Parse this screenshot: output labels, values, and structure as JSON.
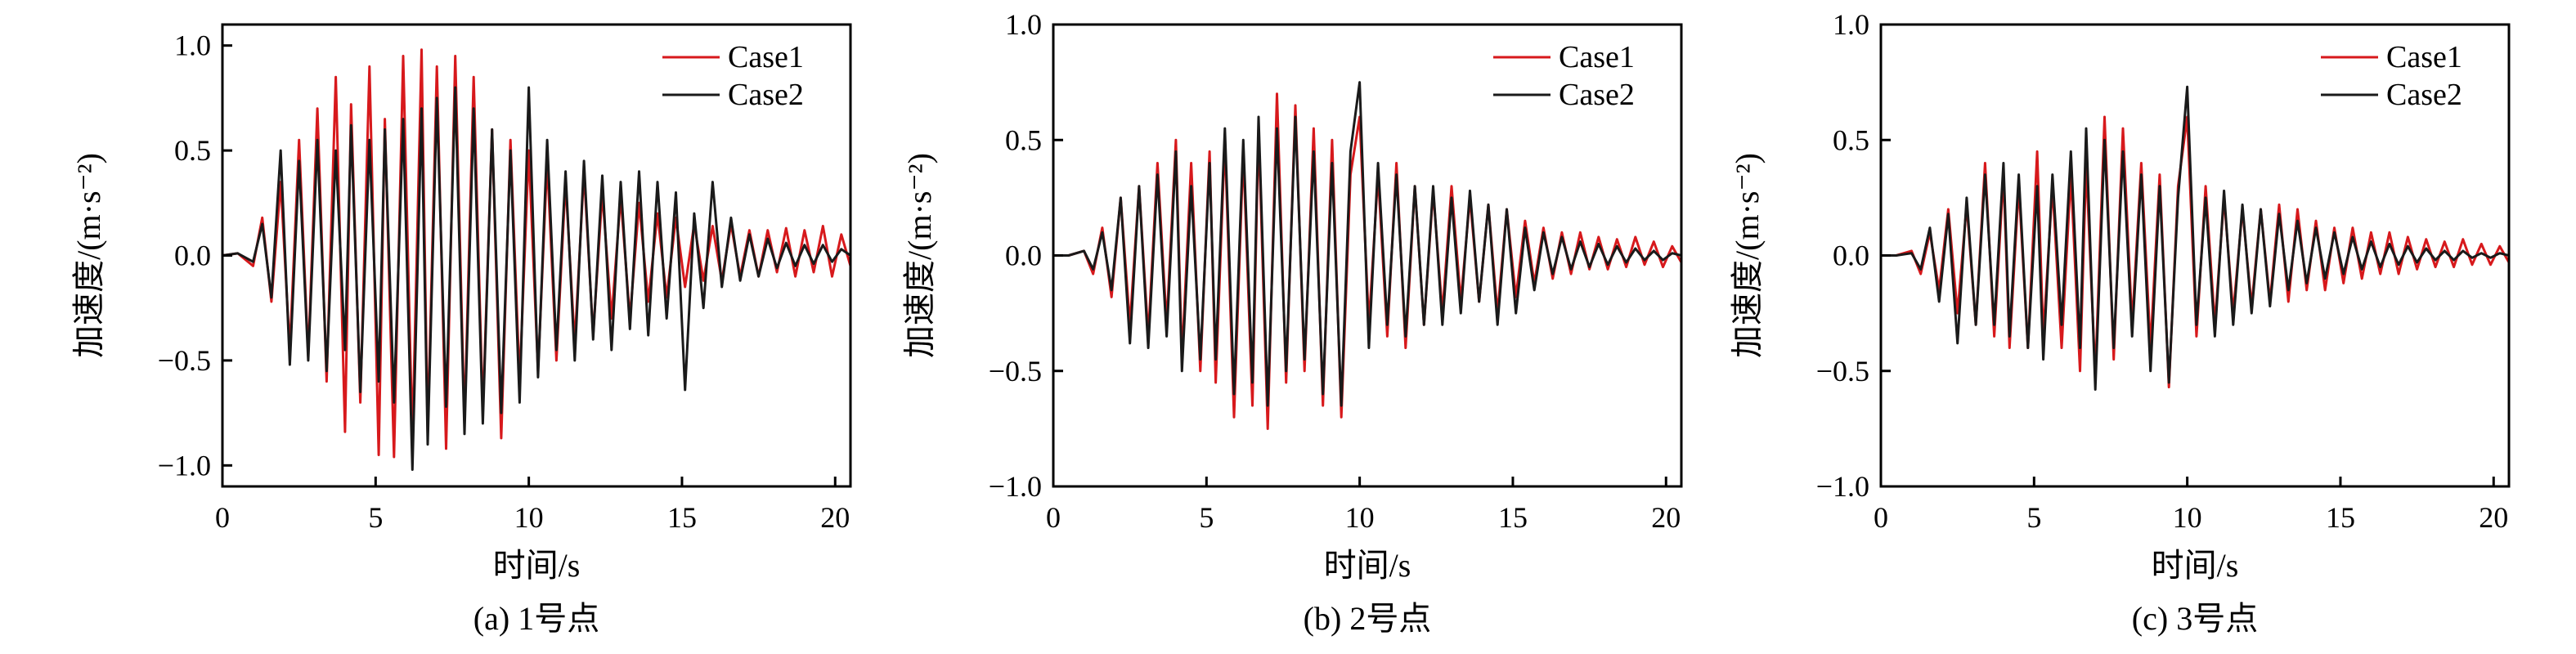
{
  "colors": {
    "case1": "#d7191c",
    "case2": "#1a1a1a",
    "axis": "#000000"
  },
  "chart_data": [
    {
      "type": "line",
      "caption": "(a) 1号点",
      "xlabel": "时间/s",
      "ylabel": "加速度/(m·s⁻²)",
      "xlim": [
        0,
        20.5
      ],
      "ylim": [
        -1.1,
        1.1
      ],
      "xticks": [
        0,
        5,
        10,
        15,
        20
      ],
      "xtick_labels": [
        "0",
        "5",
        "10",
        "15",
        "20"
      ],
      "yticks": [
        -1.0,
        -0.5,
        0.0,
        0.5,
        1.0
      ],
      "ytick_labels": [
        "−1.0",
        "−0.5",
        "0.0",
        "0.5",
        "1.0"
      ],
      "legend_position": "top-right",
      "series": [
        {
          "name": "Case1",
          "color": "#d7191c",
          "x": [
            0.0,
            0.5,
            1.0,
            1.3,
            1.6,
            1.9,
            2.2,
            2.5,
            2.8,
            3.1,
            3.4,
            3.7,
            4.0,
            4.2,
            4.5,
            4.8,
            5.1,
            5.3,
            5.6,
            5.9,
            6.2,
            6.5,
            6.7,
            7.0,
            7.3,
            7.6,
            7.9,
            8.2,
            8.5,
            8.8,
            9.1,
            9.4,
            9.7,
            10.0,
            10.3,
            10.6,
            10.9,
            11.2,
            11.5,
            11.8,
            12.1,
            12.4,
            12.7,
            13.0,
            13.3,
            13.6,
            13.9,
            14.2,
            14.5,
            14.8,
            15.1,
            15.4,
            15.7,
            16.0,
            16.3,
            16.6,
            16.9,
            17.2,
            17.5,
            17.8,
            18.1,
            18.4,
            18.7,
            19.0,
            19.3,
            19.6,
            19.9,
            20.2,
            20.5
          ],
          "y": [
            0.0,
            0.01,
            -0.05,
            0.18,
            -0.22,
            0.35,
            -0.45,
            0.55,
            -0.48,
            0.7,
            -0.6,
            0.85,
            -0.84,
            0.72,
            -0.7,
            0.9,
            -0.95,
            0.65,
            -0.96,
            0.95,
            -0.88,
            0.98,
            -0.85,
            0.9,
            -0.92,
            0.95,
            -0.8,
            0.85,
            -0.75,
            0.6,
            -0.87,
            0.55,
            -0.6,
            0.5,
            -0.55,
            0.45,
            -0.5,
            0.35,
            -0.42,
            0.4,
            -0.38,
            0.3,
            -0.3,
            0.28,
            -0.3,
            0.25,
            -0.22,
            0.2,
            -0.2,
            0.18,
            -0.15,
            0.15,
            -0.12,
            0.14,
            -0.12,
            0.15,
            -0.1,
            0.12,
            -0.1,
            0.12,
            -0.08,
            0.13,
            -0.1,
            0.12,
            -0.08,
            0.14,
            -0.1,
            0.1,
            -0.05
          ]
        },
        {
          "name": "Case2",
          "color": "#1a1a1a",
          "x": [
            0.0,
            0.5,
            1.0,
            1.3,
            1.6,
            1.9,
            2.2,
            2.5,
            2.8,
            3.1,
            3.4,
            3.7,
            4.0,
            4.2,
            4.5,
            4.8,
            5.1,
            5.3,
            5.6,
            5.9,
            6.2,
            6.5,
            6.7,
            7.0,
            7.3,
            7.6,
            7.9,
            8.2,
            8.5,
            8.8,
            9.1,
            9.4,
            9.7,
            10.0,
            10.3,
            10.6,
            10.9,
            11.2,
            11.5,
            11.8,
            12.1,
            12.4,
            12.7,
            13.0,
            13.3,
            13.6,
            13.9,
            14.2,
            14.5,
            14.8,
            15.1,
            15.4,
            15.7,
            16.0,
            16.3,
            16.6,
            16.9,
            17.2,
            17.5,
            17.8,
            18.1,
            18.4,
            18.7,
            19.0,
            19.3,
            19.6,
            19.9,
            20.2,
            20.5
          ],
          "y": [
            0.0,
            0.01,
            -0.03,
            0.15,
            -0.2,
            0.5,
            -0.52,
            0.45,
            -0.5,
            0.55,
            -0.55,
            0.5,
            -0.45,
            0.62,
            -0.65,
            0.55,
            -0.6,
            0.6,
            -0.7,
            0.65,
            -1.02,
            0.7,
            -0.9,
            0.75,
            -0.72,
            0.8,
            -0.85,
            0.7,
            -0.8,
            0.6,
            -0.75,
            0.5,
            -0.7,
            0.8,
            -0.58,
            0.55,
            -0.45,
            0.4,
            -0.5,
            0.45,
            -0.4,
            0.38,
            -0.45,
            0.35,
            -0.35,
            0.4,
            -0.38,
            0.35,
            -0.3,
            0.3,
            -0.64,
            0.2,
            -0.25,
            0.35,
            -0.15,
            0.18,
            -0.12,
            0.1,
            -0.1,
            0.08,
            -0.06,
            0.06,
            -0.05,
            0.05,
            -0.04,
            0.05,
            -0.03,
            0.03,
            0.0
          ]
        }
      ]
    },
    {
      "type": "line",
      "caption": "(b) 2号点",
      "xlabel": "时间/s",
      "ylabel": "加速度/(m·s⁻²)",
      "xlim": [
        0,
        20.5
      ],
      "ylim": [
        -1.0,
        1.0
      ],
      "xticks": [
        0,
        5,
        10,
        15,
        20
      ],
      "xtick_labels": [
        "0",
        "5",
        "10",
        "15",
        "20"
      ],
      "yticks": [
        -1.0,
        -0.5,
        0.0,
        0.5,
        1.0
      ],
      "ytick_labels": [
        "−1.0",
        "−0.5",
        "0.0",
        "0.5",
        "1.0"
      ],
      "legend_position": "top-right",
      "series": [
        {
          "name": "Case1",
          "color": "#d7191c",
          "x": [
            0.0,
            0.5,
            1.0,
            1.3,
            1.6,
            1.9,
            2.2,
            2.5,
            2.8,
            3.1,
            3.4,
            3.7,
            4.0,
            4.2,
            4.5,
            4.8,
            5.1,
            5.3,
            5.6,
            5.9,
            6.2,
            6.5,
            6.7,
            7.0,
            7.3,
            7.6,
            7.9,
            8.2,
            8.5,
            8.8,
            9.1,
            9.4,
            9.7,
            10.0,
            10.3,
            10.6,
            10.9,
            11.2,
            11.5,
            11.8,
            12.1,
            12.4,
            12.7,
            13.0,
            13.3,
            13.6,
            13.9,
            14.2,
            14.5,
            14.8,
            15.1,
            15.4,
            15.7,
            16.0,
            16.3,
            16.6,
            16.9,
            17.2,
            17.5,
            17.8,
            18.1,
            18.4,
            18.7,
            19.0,
            19.3,
            19.6,
            19.9,
            20.2,
            20.5
          ],
          "y": [
            0.0,
            0.0,
            0.02,
            -0.08,
            0.12,
            -0.18,
            0.25,
            -0.3,
            0.3,
            -0.35,
            0.4,
            -0.3,
            0.5,
            -0.45,
            0.4,
            -0.5,
            0.45,
            -0.55,
            0.5,
            -0.7,
            0.45,
            -0.65,
            0.55,
            -0.75,
            0.7,
            -0.55,
            0.65,
            -0.5,
            0.55,
            -0.65,
            0.5,
            -0.7,
            0.35,
            0.6,
            -0.3,
            0.35,
            -0.35,
            0.4,
            -0.4,
            0.3,
            -0.3,
            0.28,
            -0.25,
            0.3,
            -0.2,
            0.25,
            -0.2,
            0.22,
            -0.25,
            0.2,
            -0.18,
            0.15,
            -0.12,
            0.12,
            -0.1,
            0.1,
            -0.08,
            0.1,
            -0.06,
            0.08,
            -0.06,
            0.07,
            -0.05,
            0.08,
            -0.04,
            0.06,
            -0.05,
            0.04,
            -0.03
          ]
        },
        {
          "name": "Case2",
          "color": "#1a1a1a",
          "x": [
            0.0,
            0.5,
            1.0,
            1.3,
            1.6,
            1.9,
            2.2,
            2.5,
            2.8,
            3.1,
            3.4,
            3.7,
            4.0,
            4.2,
            4.5,
            4.8,
            5.1,
            5.3,
            5.6,
            5.9,
            6.2,
            6.5,
            6.7,
            7.0,
            7.3,
            7.6,
            7.9,
            8.2,
            8.5,
            8.8,
            9.1,
            9.4,
            9.7,
            10.0,
            10.3,
            10.6,
            10.9,
            11.2,
            11.5,
            11.8,
            12.1,
            12.4,
            12.7,
            13.0,
            13.3,
            13.6,
            13.9,
            14.2,
            14.5,
            14.8,
            15.1,
            15.4,
            15.7,
            16.0,
            16.3,
            16.6,
            16.9,
            17.2,
            17.5,
            17.8,
            18.1,
            18.4,
            18.7,
            19.0,
            19.3,
            19.6,
            19.9,
            20.2,
            20.5
          ],
          "y": [
            0.0,
            0.0,
            0.02,
            -0.06,
            0.1,
            -0.15,
            0.25,
            -0.38,
            0.3,
            -0.4,
            0.35,
            -0.35,
            0.45,
            -0.5,
            0.3,
            -0.45,
            0.4,
            -0.45,
            0.55,
            -0.6,
            0.5,
            -0.55,
            0.6,
            -0.65,
            0.55,
            -0.5,
            0.6,
            -0.45,
            0.45,
            -0.6,
            0.4,
            -0.65,
            0.45,
            0.75,
            -0.4,
            0.4,
            -0.3,
            0.35,
            -0.35,
            0.3,
            -0.3,
            0.3,
            -0.3,
            0.25,
            -0.25,
            0.28,
            -0.2,
            0.22,
            -0.3,
            0.2,
            -0.25,
            0.12,
            -0.15,
            0.1,
            -0.08,
            0.08,
            -0.06,
            0.06,
            -0.05,
            0.05,
            -0.04,
            0.04,
            -0.03,
            0.03,
            -0.02,
            0.02,
            -0.02,
            0.01,
            0.0
          ]
        }
      ]
    },
    {
      "type": "line",
      "caption": "(c) 3号点",
      "xlabel": "时间/s",
      "ylabel": "加速度/(m·s⁻²)",
      "xlim": [
        0,
        20.5
      ],
      "ylim": [
        -1.0,
        1.0
      ],
      "xticks": [
        0,
        5,
        10,
        15,
        20
      ],
      "xtick_labels": [
        "0",
        "5",
        "10",
        "15",
        "20"
      ],
      "yticks": [
        -1.0,
        -0.5,
        0.0,
        0.5,
        1.0
      ],
      "ytick_labels": [
        "−1.0",
        "−0.5",
        "0.0",
        "0.5",
        "1.0"
      ],
      "legend_position": "top-right",
      "series": [
        {
          "name": "Case1",
          "color": "#d7191c",
          "x": [
            0.0,
            0.5,
            1.0,
            1.3,
            1.6,
            1.9,
            2.2,
            2.5,
            2.8,
            3.1,
            3.4,
            3.7,
            4.0,
            4.2,
            4.5,
            4.8,
            5.1,
            5.3,
            5.6,
            5.9,
            6.2,
            6.5,
            6.7,
            7.0,
            7.3,
            7.6,
            7.9,
            8.2,
            8.5,
            8.8,
            9.1,
            9.4,
            9.7,
            10.0,
            10.3,
            10.6,
            10.9,
            11.2,
            11.5,
            11.8,
            12.1,
            12.4,
            12.7,
            13.0,
            13.3,
            13.6,
            13.9,
            14.2,
            14.5,
            14.8,
            15.1,
            15.4,
            15.7,
            16.0,
            16.3,
            16.6,
            16.9,
            17.2,
            17.5,
            17.8,
            18.1,
            18.4,
            18.7,
            19.0,
            19.3,
            19.6,
            19.9,
            20.2,
            20.5
          ],
          "y": [
            0.0,
            0.0,
            0.02,
            -0.08,
            0.1,
            -0.15,
            0.2,
            -0.25,
            0.22,
            -0.3,
            0.4,
            -0.35,
            0.35,
            -0.4,
            0.3,
            -0.4,
            0.45,
            -0.35,
            0.3,
            -0.4,
            0.35,
            -0.5,
            0.4,
            -0.52,
            0.6,
            -0.45,
            0.55,
            -0.3,
            0.4,
            -0.4,
            0.35,
            -0.57,
            0.3,
            0.6,
            -0.35,
            0.3,
            -0.3,
            0.25,
            -0.25,
            0.2,
            -0.22,
            0.2,
            -0.2,
            0.22,
            -0.2,
            0.2,
            -0.15,
            0.15,
            -0.15,
            0.12,
            -0.12,
            0.12,
            -0.1,
            0.1,
            -0.08,
            0.1,
            -0.08,
            0.08,
            -0.06,
            0.07,
            -0.05,
            0.06,
            -0.05,
            0.07,
            -0.04,
            0.05,
            -0.04,
            0.04,
            -0.03
          ]
        },
        {
          "name": "Case2",
          "color": "#1a1a1a",
          "x": [
            0.0,
            0.5,
            1.0,
            1.3,
            1.6,
            1.9,
            2.2,
            2.5,
            2.8,
            3.1,
            3.4,
            3.7,
            4.0,
            4.2,
            4.5,
            4.8,
            5.1,
            5.3,
            5.6,
            5.9,
            6.2,
            6.5,
            6.7,
            7.0,
            7.3,
            7.6,
            7.9,
            8.2,
            8.5,
            8.8,
            9.1,
            9.4,
            9.7,
            10.0,
            10.3,
            10.6,
            10.9,
            11.2,
            11.5,
            11.8,
            12.1,
            12.4,
            12.7,
            13.0,
            13.3,
            13.6,
            13.9,
            14.2,
            14.5,
            14.8,
            15.1,
            15.4,
            15.7,
            16.0,
            16.3,
            16.6,
            16.9,
            17.2,
            17.5,
            17.8,
            18.1,
            18.4,
            18.7,
            19.0,
            19.3,
            19.6,
            19.9,
            20.2,
            20.5
          ],
          "y": [
            0.0,
            0.0,
            0.01,
            -0.06,
            0.12,
            -0.2,
            0.18,
            -0.38,
            0.25,
            -0.3,
            0.35,
            -0.3,
            0.4,
            -0.35,
            0.35,
            -0.4,
            0.3,
            -0.45,
            0.35,
            -0.3,
            0.45,
            -0.4,
            0.55,
            -0.58,
            0.5,
            -0.4,
            0.45,
            -0.35,
            0.35,
            -0.5,
            0.3,
            -0.55,
            0.25,
            0.73,
            -0.3,
            0.25,
            -0.35,
            0.28,
            -0.3,
            0.22,
            -0.25,
            0.2,
            -0.22,
            0.18,
            -0.15,
            0.15,
            -0.12,
            0.12,
            -0.1,
            0.1,
            -0.08,
            0.08,
            -0.06,
            0.06,
            -0.05,
            0.05,
            -0.04,
            0.04,
            -0.03,
            0.03,
            -0.02,
            0.02,
            -0.02,
            0.02,
            -0.01,
            0.01,
            -0.01,
            0.01,
            0.0
          ]
        }
      ]
    }
  ]
}
